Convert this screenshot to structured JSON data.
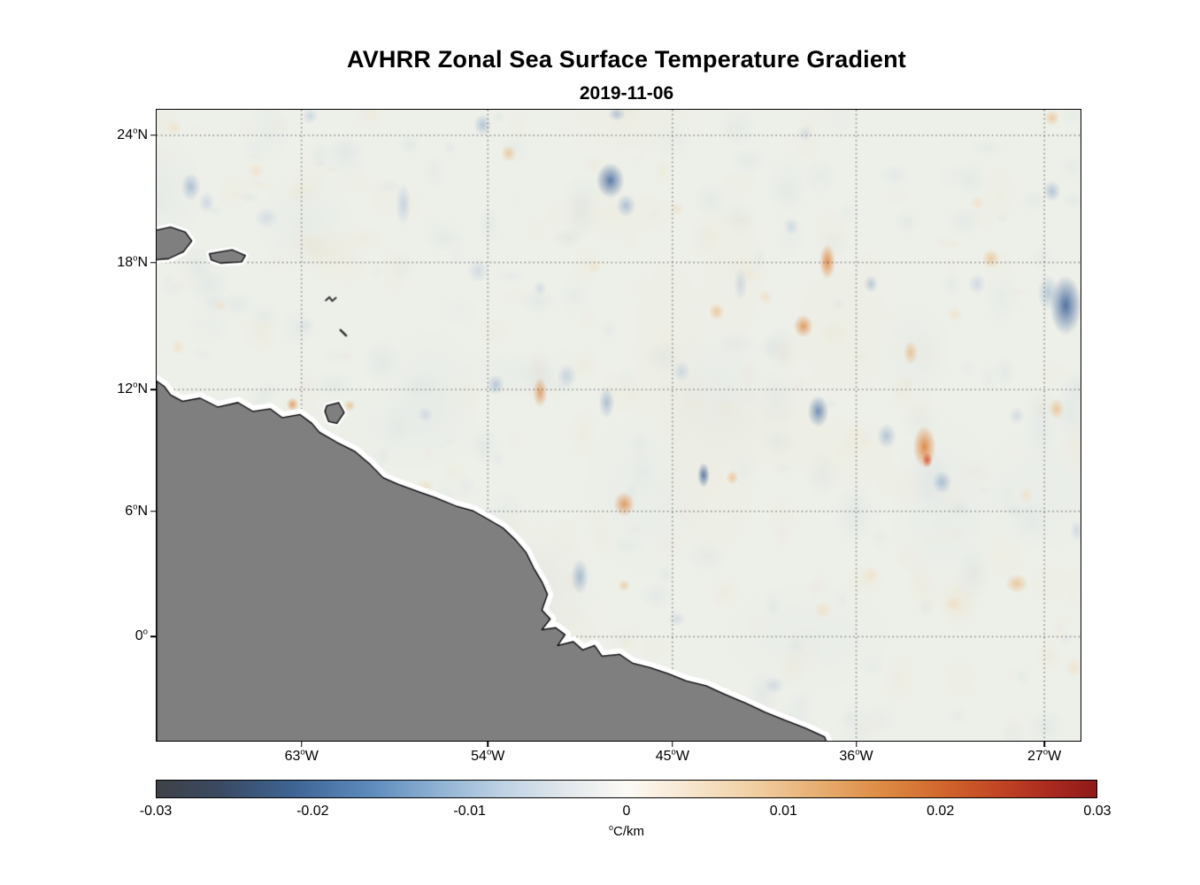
{
  "chart_data": {
    "type": "heatmap",
    "title": "AVHRR Zonal Sea Surface Temperature Gradient",
    "subtitle_date": "2019-11-06",
    "deg": "o",
    "extent_note": "lon 70W-25W, lat 5S-25N",
    "yticks": [
      {
        "num": "24",
        "hemi": "N",
        "f": 0.0406
      },
      {
        "num": "18",
        "hemi": "N",
        "f": 0.242
      },
      {
        "num": "12",
        "hemi": "N",
        "f": 0.4434
      },
      {
        "num": "6",
        "hemi": "N",
        "f": 0.6364
      },
      {
        "num": "0",
        "hemi": "",
        "f": 0.835
      }
    ],
    "xticks": [
      {
        "num": "63",
        "hemi": "W",
        "f": 0.1568
      },
      {
        "num": "54",
        "hemi": "W",
        "f": 0.3585
      },
      {
        "num": "45",
        "hemi": "W",
        "f": 0.5583
      },
      {
        "num": "36",
        "hemi": "W",
        "f": 0.7572
      },
      {
        "num": "27",
        "hemi": "W",
        "f": 0.9608
      }
    ],
    "colorbar": {
      "min": -0.03,
      "max": 0.03,
      "tick_labels": [
        "-0.03",
        "-0.02",
        "-0.01",
        "0",
        "0.01",
        "0.02",
        "0.03"
      ],
      "unit_deg": "o",
      "unit": "C/km",
      "gradient_stops": [
        {
          "p": 0,
          "c": "#3e4147"
        },
        {
          "p": 7,
          "c": "#3a4a63"
        },
        {
          "p": 15,
          "c": "#3f6697"
        },
        {
          "p": 23,
          "c": "#5f8cbd"
        },
        {
          "p": 30,
          "c": "#8fb2d3"
        },
        {
          "p": 37,
          "c": "#bfd3e4"
        },
        {
          "p": 44,
          "c": "#e4e9ec"
        },
        {
          "p": 50,
          "c": "#fcfaf5"
        },
        {
          "p": 56,
          "c": "#f7e8d3"
        },
        {
          "p": 63,
          "c": "#f1d1a6"
        },
        {
          "p": 70,
          "c": "#e7b074"
        },
        {
          "p": 77,
          "c": "#dd8c44"
        },
        {
          "p": 84,
          "c": "#d0642c"
        },
        {
          "p": 90,
          "c": "#c04323"
        },
        {
          "p": 95,
          "c": "#ab2a20"
        },
        {
          "p": 100,
          "c": "#8e1a18"
        }
      ]
    },
    "map": {
      "background": "#edf0e9",
      "land_color": "#7f7f7f",
      "coast_color": "#000000",
      "coast_halo": "#ffffff",
      "grid_color": "#3a3a3a",
      "land_polygons": {
        "south_america": [
          [
            0,
            0.43
          ],
          [
            0.008,
            0.438
          ],
          [
            0.015,
            0.452
          ],
          [
            0.028,
            0.462
          ],
          [
            0.047,
            0.457
          ],
          [
            0.066,
            0.471
          ],
          [
            0.088,
            0.464
          ],
          [
            0.104,
            0.478
          ],
          [
            0.123,
            0.474
          ],
          [
            0.136,
            0.488
          ],
          [
            0.155,
            0.483
          ],
          [
            0.168,
            0.497
          ],
          [
            0.176,
            0.511
          ],
          [
            0.195,
            0.527
          ],
          [
            0.214,
            0.541
          ],
          [
            0.231,
            0.562
          ],
          [
            0.245,
            0.583
          ],
          [
            0.262,
            0.594
          ],
          [
            0.281,
            0.604
          ],
          [
            0.302,
            0.615
          ],
          [
            0.324,
            0.628
          ],
          [
            0.343,
            0.636
          ],
          [
            0.36,
            0.65
          ],
          [
            0.375,
            0.663
          ],
          [
            0.388,
            0.681
          ],
          [
            0.4,
            0.702
          ],
          [
            0.408,
            0.726
          ],
          [
            0.417,
            0.748
          ],
          [
            0.423,
            0.768
          ],
          [
            0.417,
            0.793
          ],
          [
            0.426,
            0.807
          ],
          [
            0.417,
            0.824
          ],
          [
            0.432,
            0.821
          ],
          [
            0.442,
            0.832
          ],
          [
            0.434,
            0.849
          ],
          [
            0.451,
            0.843
          ],
          [
            0.461,
            0.856
          ],
          [
            0.474,
            0.849
          ],
          [
            0.482,
            0.866
          ],
          [
            0.501,
            0.863
          ],
          [
            0.515,
            0.877
          ],
          [
            0.534,
            0.884
          ],
          [
            0.554,
            0.894
          ],
          [
            0.573,
            0.905
          ],
          [
            0.595,
            0.913
          ],
          [
            0.616,
            0.927
          ],
          [
            0.637,
            0.94
          ],
          [
            0.659,
            0.955
          ],
          [
            0.681,
            0.968
          ],
          [
            0.702,
            0.98
          ],
          [
            0.723,
            0.994
          ],
          [
            0.73,
            1.02
          ],
          [
            0,
            1.02
          ]
        ],
        "trinidad": [
          [
            0.184,
            0.469
          ],
          [
            0.197,
            0.464
          ],
          [
            0.203,
            0.48
          ],
          [
            0.195,
            0.497
          ],
          [
            0.186,
            0.494
          ],
          [
            0.182,
            0.478
          ]
        ],
        "hispaniola": [
          [
            -0.01,
            0.194
          ],
          [
            0.015,
            0.186
          ],
          [
            0.031,
            0.194
          ],
          [
            0.038,
            0.208
          ],
          [
            0.029,
            0.225
          ],
          [
            0.013,
            0.236
          ],
          [
            -0.01,
            0.239
          ]
        ],
        "puerto_rico": [
          [
            0.057,
            0.228
          ],
          [
            0.082,
            0.222
          ],
          [
            0.096,
            0.231
          ],
          [
            0.092,
            0.241
          ],
          [
            0.069,
            0.243
          ],
          [
            0.059,
            0.238
          ]
        ]
      },
      "islets": [
        {
          "w": 2,
          "pts": [
            [
              0.183,
              0.302
            ],
            [
              0.187,
              0.297
            ],
            [
              0.19,
              0.303
            ],
            [
              0.194,
              0.298
            ]
          ]
        },
        {
          "w": 2.5,
          "pts": [
            [
              0.199,
              0.349
            ],
            [
              0.205,
              0.358
            ]
          ]
        }
      ]
    },
    "field": {
      "palette": {
        "b1": "#46699c",
        "b2": "#7d9bc3",
        "b3": "#b9c8dc",
        "o1": "#dd7b2e",
        "o2": "#eaa963",
        "o3": "#f3d9b8",
        "r1": "#d93a1a",
        "noise_cool": "#aebfd6",
        "noise_warm": "#f0d0a8"
      },
      "noise": {
        "seed": 11,
        "count": 340,
        "big_patches": 26
      },
      "anomaly_format": [
        "x_frac",
        "y_frac",
        "rx_px",
        "ry_px",
        "color_key",
        "alpha"
      ],
      "anomalies": [
        [
          0.491,
          0.112,
          16,
          20,
          "b1",
          0.85
        ],
        [
          0.508,
          0.152,
          11,
          13,
          "b2",
          0.55
        ],
        [
          0.984,
          0.31,
          18,
          34,
          "b1",
          0.92
        ],
        [
          0.965,
          0.29,
          12,
          20,
          "b2",
          0.45
        ],
        [
          0.969,
          0.129,
          10,
          12,
          "b2",
          0.5
        ],
        [
          0.716,
          0.478,
          12,
          18,
          "b1",
          0.7
        ],
        [
          0.592,
          0.579,
          7,
          14,
          "b1",
          0.85
        ],
        [
          0.79,
          0.517,
          11,
          14,
          "b2",
          0.5
        ],
        [
          0.85,
          0.59,
          11,
          13,
          "b2",
          0.55
        ],
        [
          0.458,
          0.74,
          10,
          20,
          "b2",
          0.6
        ],
        [
          0.037,
          0.122,
          11,
          16,
          "b2",
          0.55
        ],
        [
          0.054,
          0.147,
          9,
          12,
          "b3",
          0.6
        ],
        [
          0.267,
          0.15,
          9,
          24,
          "b3",
          0.7
        ],
        [
          0.353,
          0.024,
          10,
          12,
          "b2",
          0.5
        ],
        [
          0.166,
          0.01,
          9,
          9,
          "b3",
          0.6
        ],
        [
          0.367,
          0.436,
          10,
          12,
          "b2",
          0.45
        ],
        [
          0.444,
          0.422,
          11,
          14,
          "b3",
          0.7
        ],
        [
          0.487,
          0.464,
          9,
          18,
          "b2",
          0.55
        ],
        [
          0.568,
          0.415,
          10,
          12,
          "b3",
          0.6
        ],
        [
          0.773,
          0.276,
          8,
          10,
          "b2",
          0.45
        ],
        [
          0.687,
          0.185,
          9,
          10,
          "b3",
          0.55
        ],
        [
          0.888,
          0.276,
          10,
          12,
          "b3",
          0.55
        ],
        [
          0.668,
          0.912,
          12,
          10,
          "b3",
          0.5
        ],
        [
          0.563,
          0.807,
          10,
          9,
          "b3",
          0.45
        ],
        [
          0.348,
          0.255,
          12,
          14,
          "b3",
          0.5
        ],
        [
          0.415,
          0.283,
          8,
          9,
          "b3",
          0.45
        ],
        [
          0.931,
          0.485,
          9,
          10,
          "b3",
          0.5
        ],
        [
          0.119,
          0.171,
          14,
          12,
          "b3",
          0.45
        ],
        [
          0.291,
          0.483,
          9,
          9,
          "b3",
          0.5
        ],
        [
          0.702,
          0.038,
          8,
          9,
          "b3",
          0.45
        ],
        [
          0.632,
          0.276,
          8,
          20,
          "b3",
          0.55
        ],
        [
          0.498,
          0.007,
          10,
          8,
          "b2",
          0.5
        ],
        [
          0.996,
          0.667,
          8,
          12,
          "b3",
          0.5
        ],
        [
          0.726,
          0.241,
          9,
          20,
          "o1",
          0.8
        ],
        [
          0.7,
          0.343,
          11,
          13,
          "o1",
          0.7
        ],
        [
          0.831,
          0.534,
          13,
          24,
          "o1",
          0.85
        ],
        [
          0.834,
          0.555,
          6,
          9,
          "r1",
          0.75
        ],
        [
          0.506,
          0.625,
          12,
          14,
          "o1",
          0.7
        ],
        [
          0.415,
          0.448,
          8,
          17,
          "o1",
          0.65
        ],
        [
          0.147,
          0.467,
          7,
          8,
          "o1",
          0.65
        ],
        [
          0.209,
          0.469,
          7,
          7,
          "o2",
          0.55
        ],
        [
          0.816,
          0.385,
          8,
          14,
          "o2",
          0.6
        ],
        [
          0.606,
          0.32,
          9,
          10,
          "o2",
          0.5
        ],
        [
          0.659,
          0.297,
          9,
          9,
          "o3",
          0.6
        ],
        [
          0.903,
          0.236,
          10,
          11,
          "o2",
          0.5
        ],
        [
          0.974,
          0.474,
          9,
          12,
          "o2",
          0.55
        ],
        [
          0.931,
          0.751,
          13,
          11,
          "o2",
          0.55
        ],
        [
          0.862,
          0.783,
          10,
          9,
          "o3",
          0.6
        ],
        [
          0.721,
          0.793,
          11,
          10,
          "o3",
          0.55
        ],
        [
          0.381,
          0.069,
          9,
          10,
          "o2",
          0.5
        ],
        [
          0.291,
          0.597,
          10,
          9,
          "o3",
          0.6
        ],
        [
          0.969,
          0.013,
          9,
          9,
          "o2",
          0.5
        ],
        [
          0.888,
          0.147,
          9,
          9,
          "o3",
          0.55
        ],
        [
          0.023,
          0.376,
          8,
          9,
          "o3",
          0.55
        ],
        [
          0.107,
          0.097,
          10,
          10,
          "o3",
          0.5
        ],
        [
          0.019,
          0.028,
          9,
          9,
          "o3",
          0.55
        ],
        [
          0.069,
          0.31,
          8,
          8,
          "o3",
          0.5
        ],
        [
          0.993,
          0.884,
          10,
          12,
          "o3",
          0.55
        ],
        [
          0.773,
          0.737,
          10,
          9,
          "o3",
          0.5
        ],
        [
          0.623,
          0.583,
          7,
          8,
          "o2",
          0.55
        ],
        [
          0.941,
          0.611,
          9,
          10,
          "o3",
          0.5
        ],
        [
          0.864,
          0.324,
          9,
          9,
          "o3",
          0.5
        ],
        [
          0.563,
          0.157,
          8,
          8,
          "o3",
          0.5
        ],
        [
          0.474,
          0.248,
          8,
          8,
          "o3",
          0.45
        ],
        [
          0.506,
          0.754,
          7,
          7,
          "o2",
          0.45
        ]
      ]
    }
  }
}
